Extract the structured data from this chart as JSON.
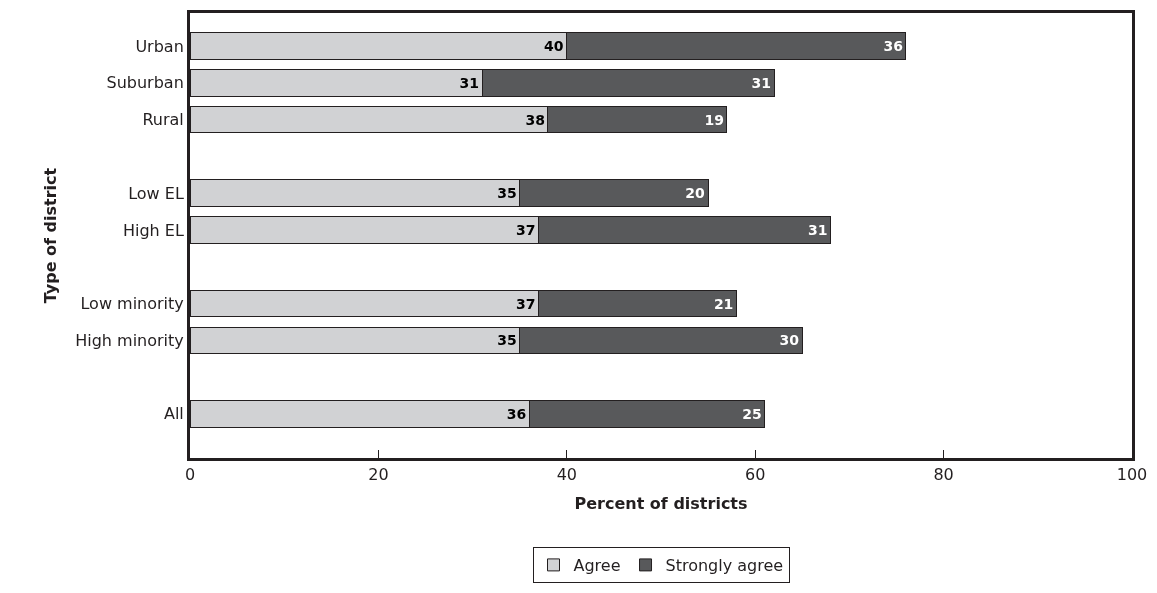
{
  "chart_data": {
    "type": "bar",
    "orientation": "horizontal",
    "stacked": true,
    "data_labels": true,
    "xlabel": "Percent of districts",
    "ylabel": "Type of district",
    "categories": [
      "Urban",
      "Suburban",
      "Rural",
      null,
      "Low EL",
      "High EL",
      null,
      "Low minority",
      "High minority",
      null,
      "All"
    ],
    "series": [
      {
        "name": "Agree",
        "color": "#d1d2d4",
        "values": [
          40,
          31,
          38,
          null,
          35,
          37,
          null,
          37,
          35,
          null,
          36
        ]
      },
      {
        "name": "Strongly agree",
        "color": "#58595b",
        "values": [
          36,
          31,
          19,
          null,
          20,
          31,
          null,
          21,
          30,
          null,
          25
        ]
      }
    ],
    "xlim": [
      0,
      100
    ],
    "xticks": [
      0,
      20,
      40,
      60,
      80,
      100
    ],
    "legend": "bottom"
  }
}
